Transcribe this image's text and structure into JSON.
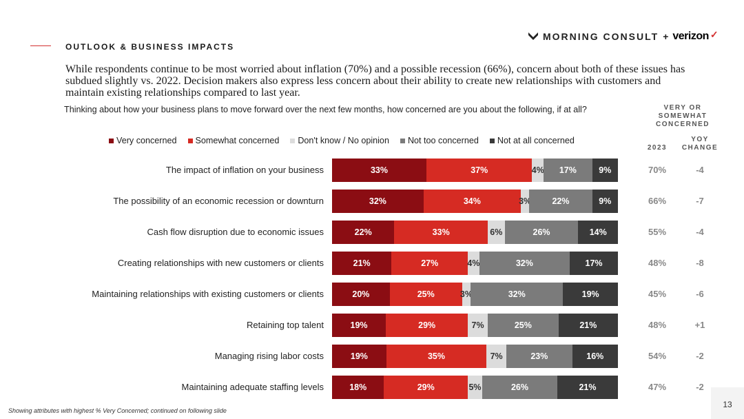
{
  "header": {
    "section_label": "OUTLOOK & BUSINESS IMPACTS",
    "brand_name": "MORNING CONSULT",
    "brand_plus": "+",
    "brand_partner": "verizon",
    "brand_partner_mark": "✓",
    "headline": "While respondents continue to be most worried about inflation (70%) and a possible recession (66%), concern about both of these issues has subdued slightly vs. 2022. Decision makers also express less concern about their ability to create new relationships with customers and maintain existing relationships compared to last year."
  },
  "colors": {
    "accent": "#d32f2f",
    "very_concerned": "#8b0d13",
    "somewhat_concerned": "#d62b23",
    "dont_know": "#dcdcdc",
    "not_too": "#7b7b7b",
    "not_at_all": "#3a3a3a"
  },
  "chart_data": {
    "type": "bar",
    "orientation": "horizontal",
    "stacked": true,
    "title": "Thinking about how your business plans to move forward over the next few months, how concerned are you about the following, if at all?",
    "legend_position": "top",
    "categories": [
      "The impact of inflation on your business",
      "The possibility of an economic recession or downturn",
      "Cash flow disruption due to economic issues",
      "Creating relationships with new customers or clients",
      "Maintaining relationships with existing customers or clients",
      "Retaining top talent",
      "Managing rising labor costs",
      "Maintaining adequate staffing levels"
    ],
    "series": [
      {
        "name": "Very concerned",
        "values": [
          33,
          32,
          22,
          21,
          20,
          19,
          19,
          18
        ]
      },
      {
        "name": "Somewhat concerned",
        "values": [
          37,
          34,
          33,
          27,
          25,
          29,
          35,
          29
        ]
      },
      {
        "name": "Don't know / No opinion",
        "values": [
          4,
          3,
          6,
          4,
          3,
          7,
          7,
          5
        ]
      },
      {
        "name": "Not too concerned",
        "values": [
          17,
          22,
          26,
          32,
          32,
          25,
          23,
          26
        ]
      },
      {
        "name": "Not at all concerned",
        "values": [
          9,
          9,
          14,
          17,
          19,
          21,
          16,
          21
        ]
      }
    ],
    "xlim": [
      0,
      100
    ],
    "side_columns": {
      "header_group": "VERY OR SOMEWHAT CONCERNED",
      "col_2023_label": "2023",
      "col_yoy_label": "YOY CHANGE",
      "values_2023": [
        "70%",
        "66%",
        "55%",
        "48%",
        "45%",
        "48%",
        "54%",
        "47%"
      ],
      "yoy_change": [
        "-4",
        "-7",
        "-4",
        "-8",
        "-6",
        "+1",
        "-2",
        "-2"
      ]
    }
  },
  "footer": {
    "footnote": "Showing attributes with highest % Very Concerned; continued on following slide",
    "page_number": "13"
  }
}
